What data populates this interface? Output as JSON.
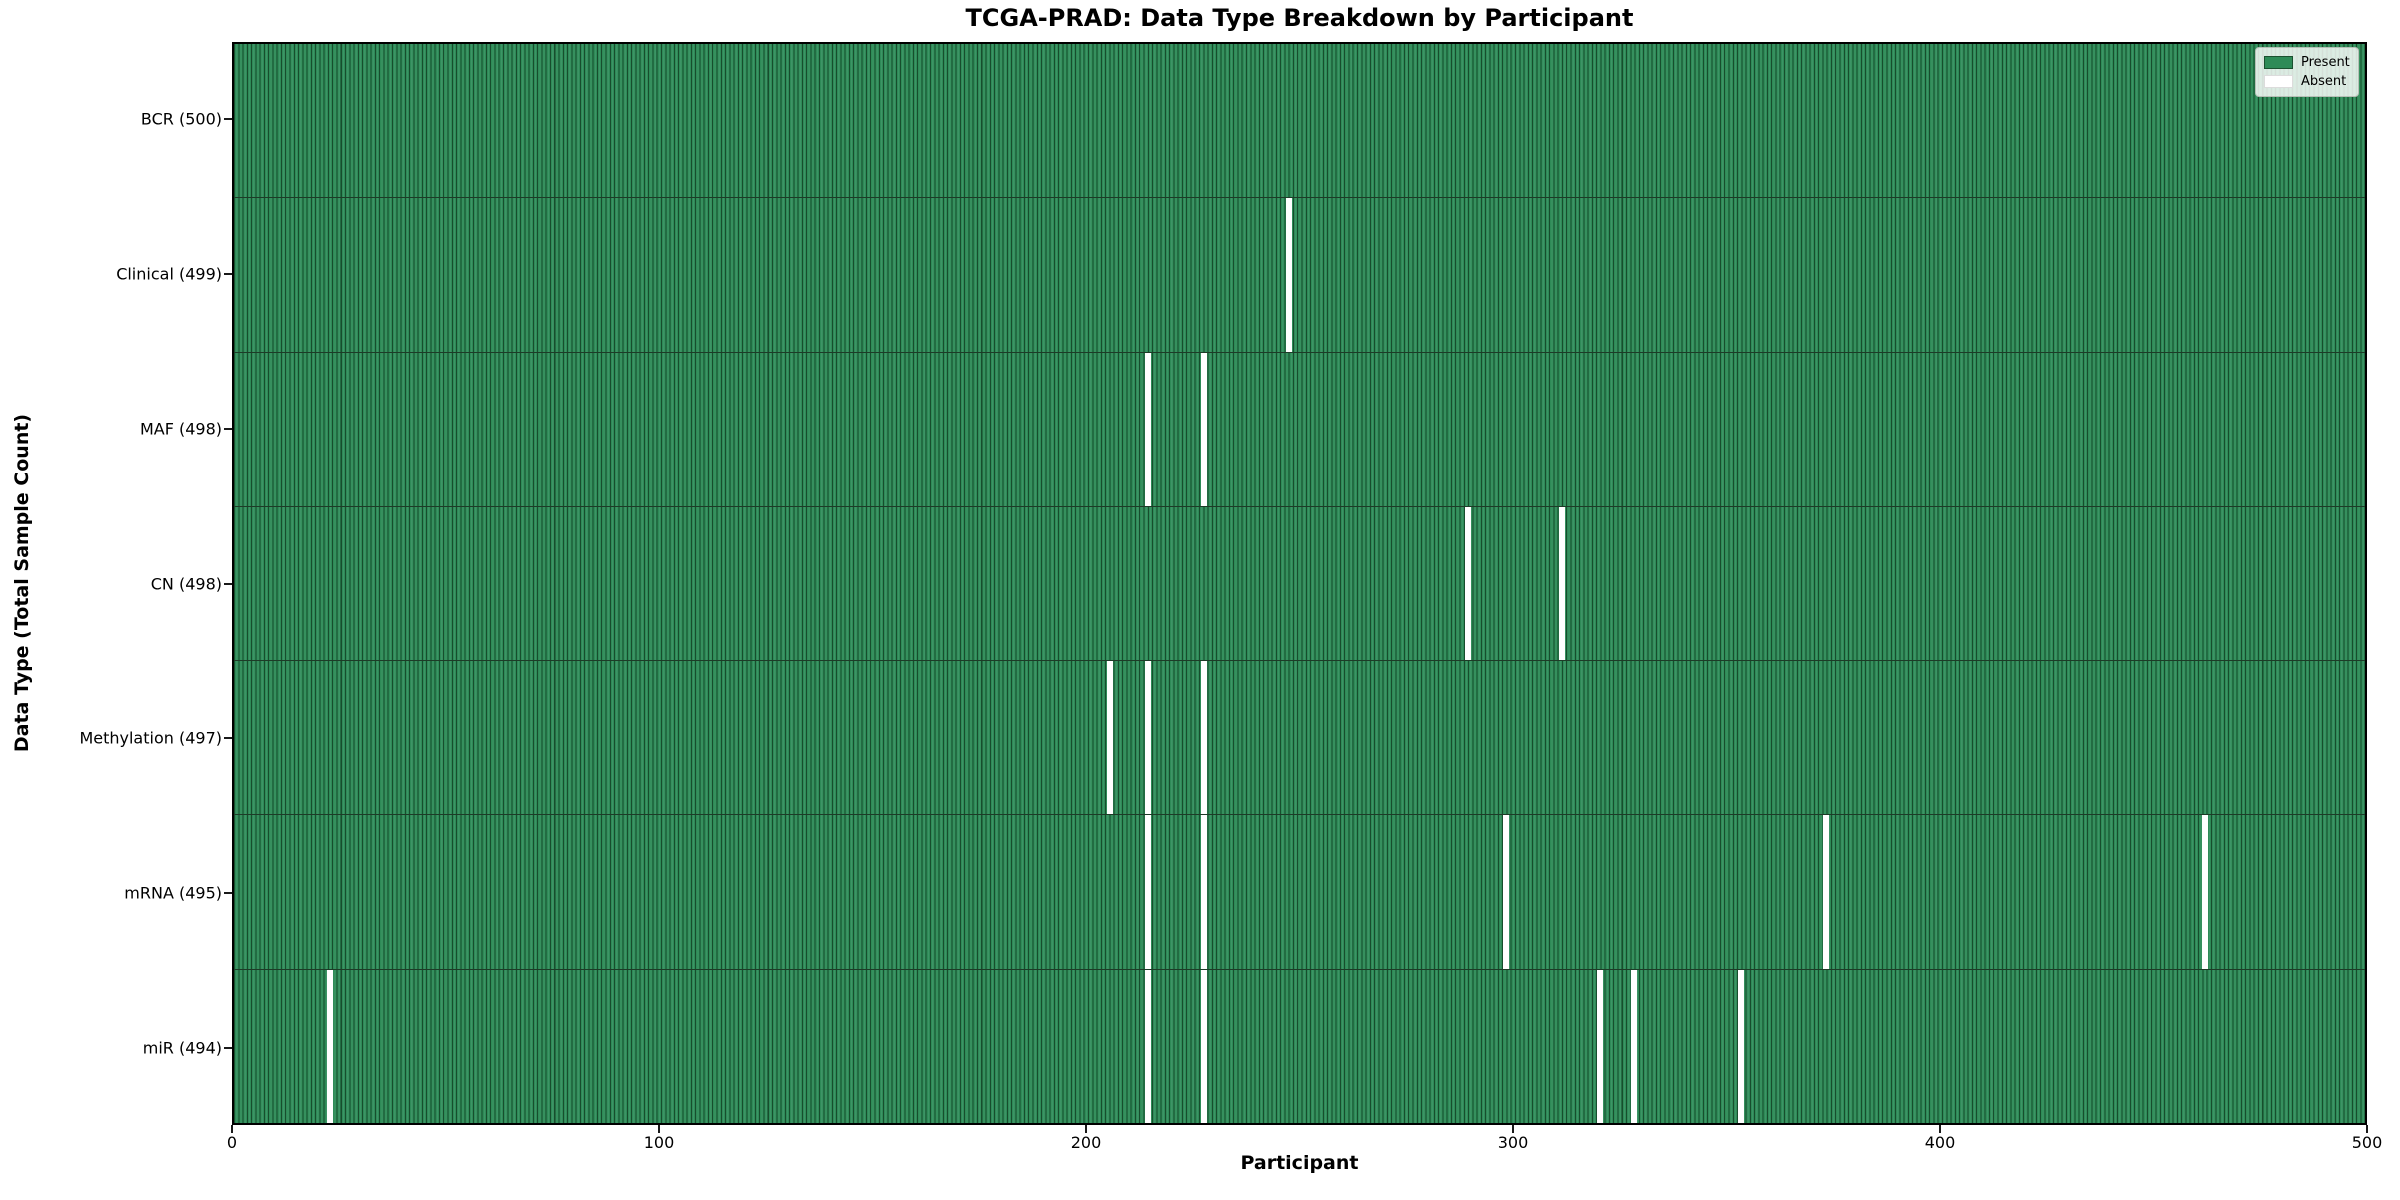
{
  "title": "TCGA-PRAD: Data Type Breakdown by Participant",
  "chart_data": {
    "type": "heatmap",
    "title": "TCGA-PRAD: Data Type Breakdown by Participant",
    "xlabel": "Participant",
    "ylabel": "Data Type (Total Sample Count)",
    "xlim": [
      0,
      500
    ],
    "x_ticks": [
      0,
      100,
      200,
      300,
      400,
      500
    ],
    "n_participants": 500,
    "grid": false,
    "legend": {
      "position": "upper right",
      "entries": [
        {
          "label": "Present",
          "color": "#2e8b57"
        },
        {
          "label": "Absent",
          "color": "#ffffff"
        }
      ]
    },
    "colors": {
      "present_fill": "#2e8b57",
      "bar_edge": "#174d2d",
      "absent_fill": "#ffffff",
      "row_separator": "#1d3b27"
    },
    "rows": [
      {
        "data_type": "BCR",
        "label": "BCR (500)",
        "present_count": 500,
        "absent_count": 0,
        "absent_participants": []
      },
      {
        "data_type": "Clinical",
        "label": "Clinical (499)",
        "present_count": 499,
        "absent_count": 1,
        "absent_participants": [
          247
        ]
      },
      {
        "data_type": "MAF",
        "label": "MAF (498)",
        "present_count": 498,
        "absent_count": 2,
        "absent_participants": [
          214,
          227
        ]
      },
      {
        "data_type": "CN",
        "label": "CN (498)",
        "present_count": 498,
        "absent_count": 2,
        "absent_participants": [
          289,
          311
        ]
      },
      {
        "data_type": "Methylation",
        "label": "Methylation (497)",
        "present_count": 497,
        "absent_count": 3,
        "absent_participants": [
          205,
          214,
          227
        ]
      },
      {
        "data_type": "mRNA",
        "label": "mRNA (495)",
        "present_count": 495,
        "absent_count": 5,
        "absent_participants": [
          214,
          227,
          298,
          373,
          462
        ]
      },
      {
        "data_type": "miR",
        "label": "miR (494)",
        "present_count": 494,
        "absent_count": 6,
        "absent_participants": [
          22,
          214,
          227,
          320,
          328,
          353
        ]
      }
    ]
  }
}
